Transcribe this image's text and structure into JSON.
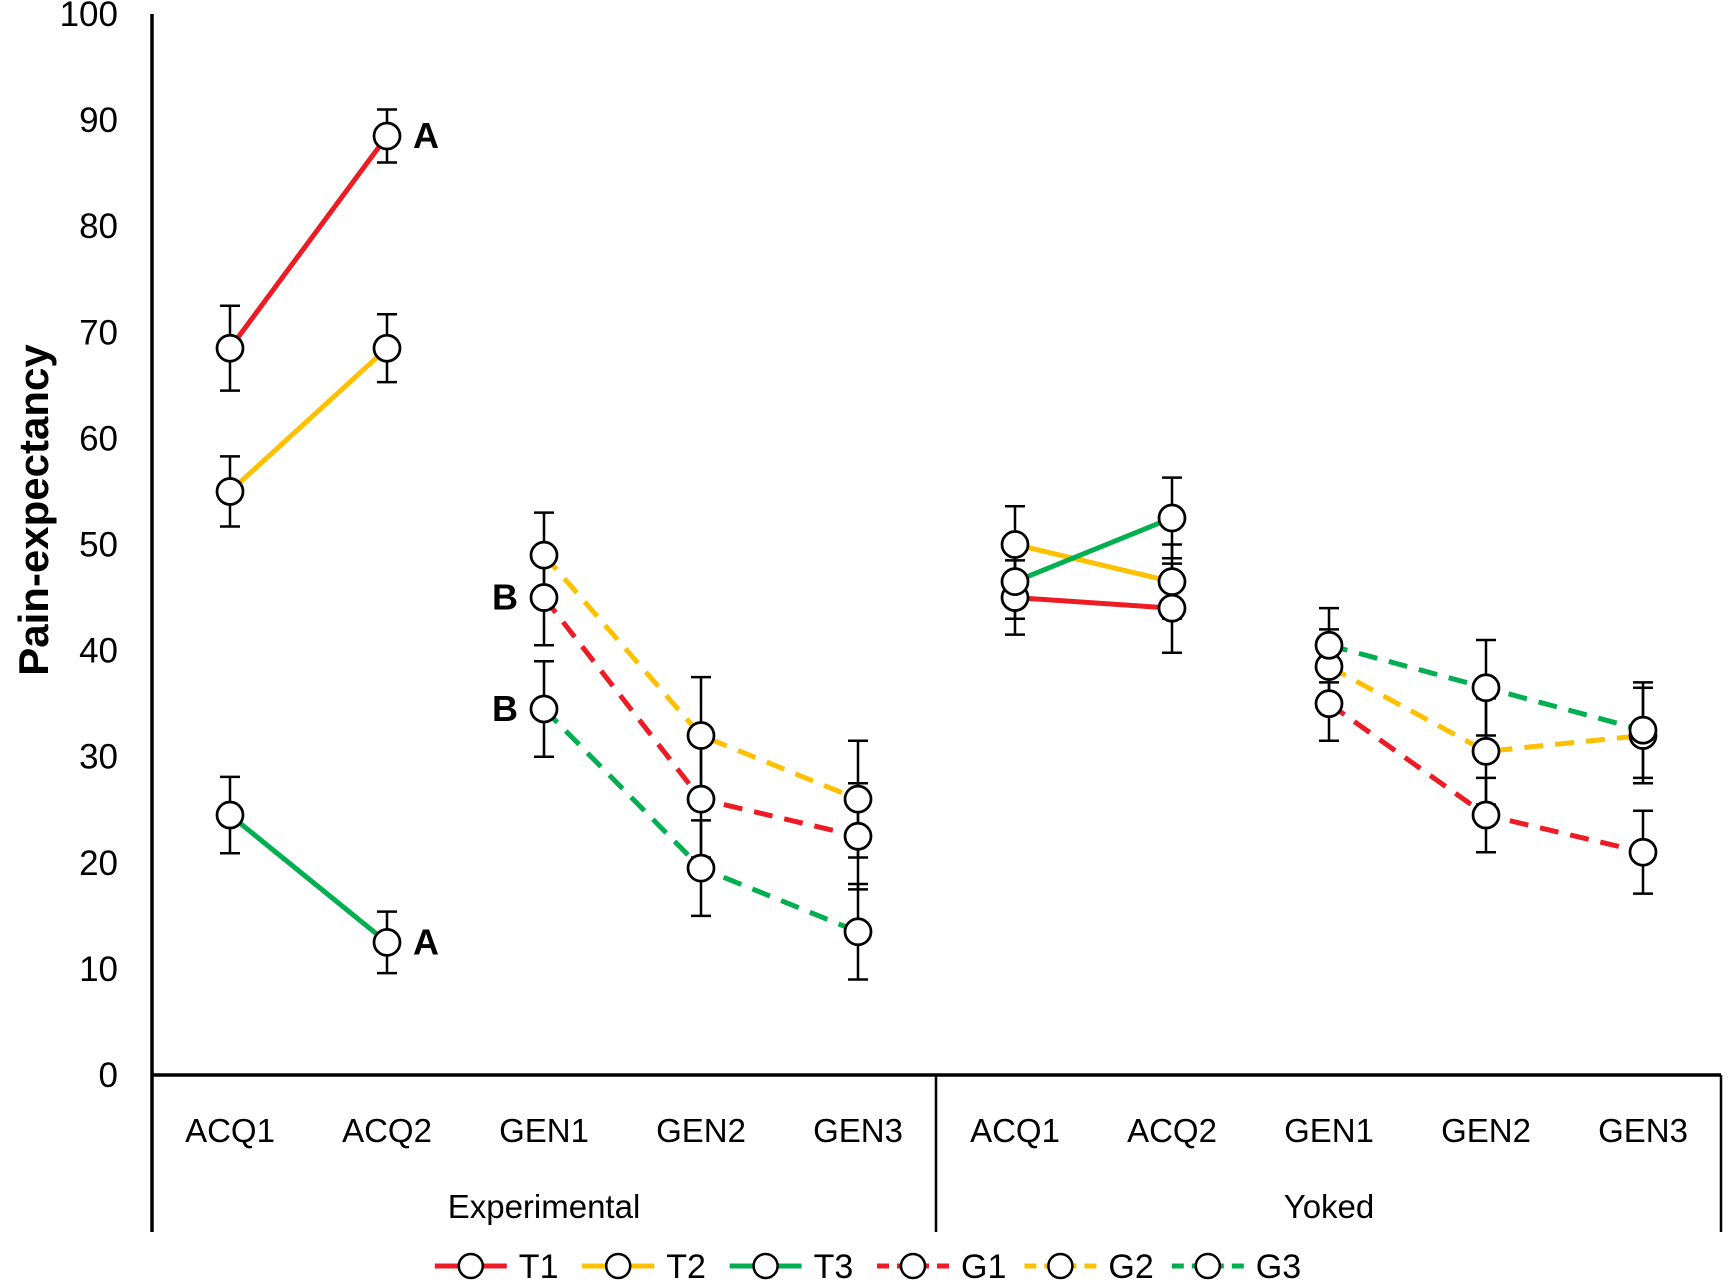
{
  "chart_data": {
    "type": "line",
    "title": "",
    "ylabel": "Pain-expectancy",
    "xlabel": "",
    "ylim": [
      0,
      100
    ],
    "yticks": [
      0,
      10,
      20,
      30,
      40,
      50,
      60,
      70,
      80,
      90,
      100
    ],
    "grid": false,
    "legend_position": "bottom",
    "marker": "open-circle",
    "marker_fill": "#FFFFFF",
    "axis_color": "#000000",
    "background": "#FFFFFF",
    "panels": [
      {
        "label": "Experimental",
        "categories": [
          "ACQ1",
          "ACQ2",
          "GEN1",
          "GEN2",
          "GEN3"
        ]
      },
      {
        "label": "Yoked",
        "categories": [
          "ACQ1",
          "ACQ2",
          "GEN1",
          "GEN2",
          "GEN3"
        ]
      }
    ],
    "series": [
      {
        "name": "T1",
        "color": "#ED1C24",
        "line": "solid",
        "points": [
          {
            "panel": 0,
            "cat": "ACQ1",
            "y": 68.5,
            "err": 4.0
          },
          {
            "panel": 0,
            "cat": "ACQ2",
            "y": 88.5,
            "err": 2.5
          },
          {
            "panel": 1,
            "cat": "ACQ1",
            "y": 45.0,
            "err": 3.5
          },
          {
            "panel": 1,
            "cat": "ACQ2",
            "y": 44.0,
            "err": 4.2
          }
        ]
      },
      {
        "name": "T2",
        "color": "#FFC000",
        "line": "solid",
        "points": [
          {
            "panel": 0,
            "cat": "ACQ1",
            "y": 55.0,
            "err": 3.3
          },
          {
            "panel": 0,
            "cat": "ACQ2",
            "y": 68.5,
            "err": 3.2
          },
          {
            "panel": 1,
            "cat": "ACQ1",
            "y": 50.0,
            "err": 3.6
          },
          {
            "panel": 1,
            "cat": "ACQ2",
            "y": 46.5,
            "err": 3.5
          }
        ]
      },
      {
        "name": "T3",
        "color": "#00B050",
        "line": "solid",
        "points": [
          {
            "panel": 0,
            "cat": "ACQ1",
            "y": 24.5,
            "err": 3.6
          },
          {
            "panel": 0,
            "cat": "ACQ2",
            "y": 12.5,
            "err": 2.9
          },
          {
            "panel": 1,
            "cat": "ACQ1",
            "y": 46.5,
            "err": 3.5
          },
          {
            "panel": 1,
            "cat": "ACQ2",
            "y": 52.5,
            "err": 3.8
          }
        ]
      },
      {
        "name": "G1",
        "color": "#ED1C24",
        "line": "dashed",
        "points": [
          {
            "panel": 0,
            "cat": "GEN1",
            "y": 45.0,
            "err": 4.5
          },
          {
            "panel": 0,
            "cat": "GEN2",
            "y": 26.0,
            "err": 5.5
          },
          {
            "panel": 0,
            "cat": "GEN3",
            "y": 22.5,
            "err": 5.0
          },
          {
            "panel": 1,
            "cat": "GEN1",
            "y": 35.0,
            "err": 3.5
          },
          {
            "panel": 1,
            "cat": "GEN2",
            "y": 24.5,
            "err": 3.5
          },
          {
            "panel": 1,
            "cat": "GEN3",
            "y": 21.0,
            "err": 3.9
          }
        ]
      },
      {
        "name": "G2",
        "color": "#FFC000",
        "line": "dashed",
        "points": [
          {
            "panel": 0,
            "cat": "GEN1",
            "y": 49.0,
            "err": 4.0
          },
          {
            "panel": 0,
            "cat": "GEN2",
            "y": 32.0,
            "err": 5.5
          },
          {
            "panel": 0,
            "cat": "GEN3",
            "y": 26.0,
            "err": 5.5
          },
          {
            "panel": 1,
            "cat": "GEN1",
            "y": 38.5,
            "err": 3.5
          },
          {
            "panel": 1,
            "cat": "GEN2",
            "y": 30.5,
            "err": 5.0
          },
          {
            "panel": 1,
            "cat": "GEN3",
            "y": 32.0,
            "err": 4.5
          }
        ]
      },
      {
        "name": "G3",
        "color": "#00B050",
        "line": "dashed",
        "points": [
          {
            "panel": 0,
            "cat": "GEN1",
            "y": 34.5,
            "err": 4.5
          },
          {
            "panel": 0,
            "cat": "GEN2",
            "y": 19.5,
            "err": 4.5
          },
          {
            "panel": 0,
            "cat": "GEN3",
            "y": 13.5,
            "err": 4.5
          },
          {
            "panel": 1,
            "cat": "GEN1",
            "y": 40.5,
            "err": 3.5
          },
          {
            "panel": 1,
            "cat": "GEN2",
            "y": 36.5,
            "err": 4.5
          },
          {
            "panel": 1,
            "cat": "GEN3",
            "y": 32.5,
            "err": 4.5
          }
        ]
      }
    ],
    "annotations": [
      {
        "text": "A",
        "panel": 0,
        "cat": "ACQ2",
        "y": 88.5,
        "side": "right"
      },
      {
        "text": "A",
        "panel": 0,
        "cat": "ACQ2",
        "y": 12.5,
        "side": "right"
      },
      {
        "text": "B",
        "panel": 0,
        "cat": "GEN1",
        "y": 45.0,
        "side": "left"
      },
      {
        "text": "B",
        "panel": 0,
        "cat": "GEN1",
        "y": 34.5,
        "side": "left"
      }
    ],
    "legend": [
      "T1",
      "T2",
      "T3",
      "G1",
      "G2",
      "G3"
    ]
  }
}
